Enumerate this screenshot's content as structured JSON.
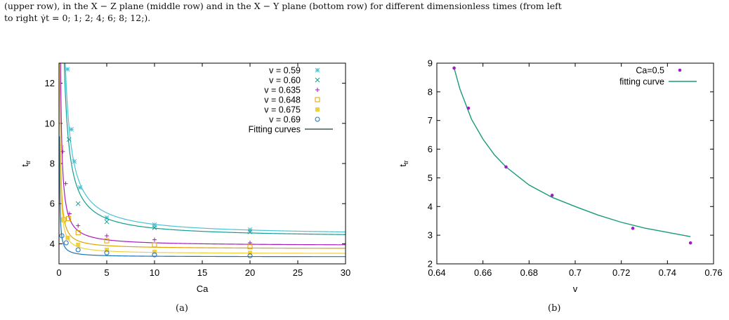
{
  "caption": {
    "line1": "(upper row), in the X − Z plane (middle row) and in the X − Y plane (bottom row) for different dimensionless times (from left",
    "line2": "to right γ̇t = 0; 1; 2; 4; 6; 8; 12;)."
  },
  "subcaptions": {
    "a": "(a)",
    "b": "(b)"
  },
  "chart_data": [
    {
      "type": "scatter",
      "title": "",
      "xlabel": "Ca",
      "ylabel": "t_tr",
      "ylabel_main": "t",
      "ylabel_sub": "tr",
      "xlim": [
        0,
        30
      ],
      "ylim": [
        3,
        13
      ],
      "xticks": [
        "0",
        "5",
        "10",
        "15",
        "20",
        "25",
        "30"
      ],
      "yticks": [
        "4",
        "6",
        "8",
        "10",
        "12"
      ],
      "legend_position": "top-right",
      "series": [
        {
          "name": "v = 0.59",
          "marker": "star",
          "color": "#4bc2d6",
          "points": [
            [
              0.9,
              12.7
            ],
            [
              1.3,
              9.7
            ],
            [
              1.6,
              8.1
            ],
            [
              2.2,
              6.8
            ],
            [
              5,
              5.3
            ],
            [
              10,
              4.95
            ],
            [
              20,
              4.7
            ]
          ],
          "fit": {
            "a": 4.4,
            "b": 5.7
          }
        },
        {
          "name": "v = 0.60",
          "marker": "x",
          "color": "#159e8f",
          "points": [
            [
              1.05,
              9.2
            ],
            [
              2,
              6.0
            ],
            [
              5,
              5.1
            ],
            [
              10,
              4.8
            ],
            [
              20,
              4.6
            ]
          ],
          "fit": {
            "a": 4.3,
            "b": 4.8
          }
        },
        {
          "name": "v = 0.635",
          "marker": "plus",
          "color": "#a61bbd",
          "points": [
            [
              0.4,
              8.6
            ],
            [
              0.7,
              7.0
            ],
            [
              1.1,
              5.5
            ],
            [
              2,
              4.9
            ],
            [
              5,
              4.4
            ],
            [
              10,
              4.2
            ],
            [
              20,
              4.05
            ]
          ],
          "fit": {
            "a": 3.9,
            "b": 1.5
          }
        },
        {
          "name": "v = 0.648",
          "marker": "square",
          "color": "#e0a300",
          "points": [
            [
              0.2,
              8.8
            ],
            [
              0.5,
              5.2
            ],
            [
              1,
              5.25
            ],
            [
              2,
              4.55
            ],
            [
              5,
              4.15
            ],
            [
              10,
              3.95
            ],
            [
              20,
              3.85
            ]
          ],
          "fit": {
            "a": 3.75,
            "b": 0.8
          }
        },
        {
          "name": "v = 0.675",
          "marker": "filled-square",
          "color": "#f0d040",
          "points": [
            [
              0.4,
              5.2
            ],
            [
              0.9,
              4.3
            ],
            [
              2,
              3.95
            ],
            [
              5,
              3.7
            ],
            [
              10,
              3.6
            ],
            [
              20,
              3.55
            ]
          ],
          "fit": {
            "a": 3.5,
            "b": 0.7
          }
        },
        {
          "name": "v = 0.69",
          "marker": "circle",
          "color": "#1f73b5",
          "points": [
            [
              0.3,
              4.4
            ],
            [
              0.75,
              4.05
            ],
            [
              2,
              3.7
            ],
            [
              5,
              3.55
            ],
            [
              10,
              3.45
            ],
            [
              20,
              3.4
            ]
          ],
          "fit": {
            "a": 3.35,
            "b": 0.3
          }
        }
      ],
      "fit_legend": {
        "name": "Fitting curves",
        "color": "#1a3a3a"
      }
    },
    {
      "type": "scatter",
      "title": "",
      "xlabel": "v",
      "ylabel": "t_tr",
      "ylabel_main": "t",
      "ylabel_sub": "tr",
      "xlim": [
        0.64,
        0.76
      ],
      "ylim": [
        2,
        9
      ],
      "xticks": [
        "0.64",
        "0.66",
        "0.68",
        "0.7",
        "0.72",
        "0.74",
        "0.76"
      ],
      "yticks": [
        "2",
        "3",
        "4",
        "5",
        "6",
        "7",
        "8",
        "9"
      ],
      "legend_position": "top-right",
      "series": [
        {
          "name": "Ca=0.5",
          "marker": "dot",
          "color": "#9a1fc4",
          "points": [
            [
              0.6475,
              8.83
            ],
            [
              0.6537,
              7.43
            ],
            [
              0.67,
              5.38
            ],
            [
              0.69,
              4.39
            ],
            [
              0.725,
              3.24
            ],
            [
              0.75,
              2.73
            ]
          ]
        }
      ],
      "fit_curve": {
        "name": "fitting curve",
        "color": "#1a9a7a",
        "points": [
          [
            0.6475,
            8.83
          ],
          [
            0.65,
            8.1
          ],
          [
            0.655,
            7.05
          ],
          [
            0.66,
            6.35
          ],
          [
            0.665,
            5.8
          ],
          [
            0.67,
            5.38
          ],
          [
            0.68,
            4.75
          ],
          [
            0.69,
            4.32
          ],
          [
            0.7,
            4.0
          ],
          [
            0.71,
            3.7
          ],
          [
            0.72,
            3.45
          ],
          [
            0.73,
            3.25
          ],
          [
            0.74,
            3.1
          ],
          [
            0.75,
            2.95
          ]
        ]
      }
    }
  ]
}
